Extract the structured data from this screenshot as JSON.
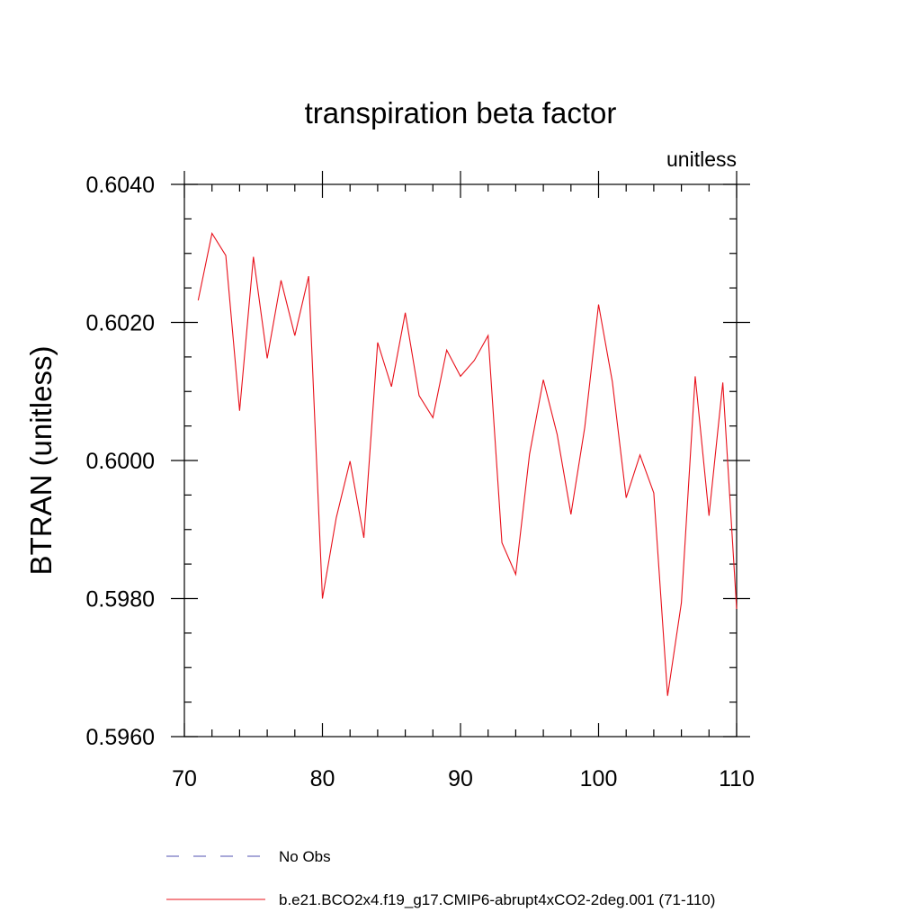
{
  "chart_data": {
    "type": "line",
    "title": "transpiration beta factor",
    "units_label": "unitless",
    "xlabel": "",
    "ylabel": "BTRAN  (unitless)",
    "xlim": [
      70,
      110
    ],
    "ylim": [
      0.596,
      0.604
    ],
    "x_ticks": [
      70,
      80,
      90,
      100,
      110
    ],
    "x_tick_labels": [
      "70",
      "80",
      "90",
      "100",
      "110"
    ],
    "x_minor_step": 2,
    "y_ticks": [
      0.596,
      0.598,
      0.6,
      0.602,
      0.604
    ],
    "y_tick_labels": [
      "0.5960",
      "0.5980",
      "0.6000",
      "0.6020",
      "0.6040"
    ],
    "y_minor_step": 0.0005,
    "grid": false,
    "legend_position": "bottom",
    "series": [
      {
        "name": "No Obs",
        "color": "#5050b0",
        "dash": "dashed",
        "x": [],
        "y": []
      },
      {
        "name": "b.e21.BCO2x4.f19_g17.CMIP6-abrupt4xCO2-2deg.001 (71-110)",
        "color": "#e8101a",
        "dash": "solid",
        "x": [
          71,
          72,
          73,
          74,
          75,
          76,
          77,
          78,
          79,
          80,
          81,
          82,
          83,
          84,
          85,
          86,
          87,
          88,
          89,
          90,
          91,
          92,
          93,
          94,
          95,
          96,
          97,
          98,
          99,
          100,
          101,
          102,
          103,
          104,
          105,
          106,
          107,
          108,
          109,
          110
        ],
        "y": [
          0.60232,
          0.60329,
          0.60297,
          0.60072,
          0.60295,
          0.60148,
          0.60261,
          0.60181,
          0.60267,
          0.598,
          0.59917,
          0.59999,
          0.59888,
          0.60171,
          0.60107,
          0.60214,
          0.60094,
          0.60062,
          0.6016,
          0.60122,
          0.60145,
          0.60181,
          0.59881,
          0.59835,
          0.60009,
          0.60117,
          0.60038,
          0.59922,
          0.60048,
          0.60226,
          0.60114,
          0.59946,
          0.60008,
          0.59953,
          0.59659,
          0.59794,
          0.60122,
          0.5992,
          0.60113,
          0.59785
        ]
      }
    ]
  }
}
